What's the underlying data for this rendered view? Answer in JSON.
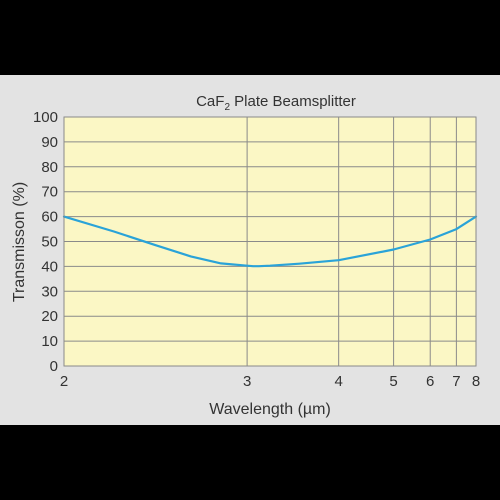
{
  "chart_data": {
    "type": "line",
    "title": "CaF",
    "title_subscript": "2",
    "title_suffix": " Plate Beamsplitter",
    "xlabel": "Wavelength (µm)",
    "ylabel": "Transmisson (%)",
    "xlim": [
      2,
      8
    ],
    "ylim": [
      0,
      100
    ],
    "x_scale": "reciprocal",
    "xticks": [
      2,
      3,
      4,
      5,
      6,
      7,
      8
    ],
    "xtick_labels": [
      "2",
      "3",
      "4",
      "5",
      "6",
      "7",
      "8"
    ],
    "yticks": [
      0,
      10,
      20,
      30,
      40,
      50,
      60,
      70,
      80,
      90,
      100
    ],
    "ytick_labels": [
      "0",
      "10",
      "20",
      "30",
      "40",
      "50",
      "60",
      "70",
      "80",
      "90",
      "100"
    ],
    "grid": true,
    "legend": "none",
    "series": [
      {
        "color": "#2aa3d8",
        "x": [
          2.0,
          2.2,
          2.4,
          2.6,
          2.8,
          3.0,
          3.05,
          3.1,
          3.2,
          3.5,
          4.0,
          5.0,
          6.0,
          7.0,
          8.0
        ],
        "y": [
          60,
          54,
          48.5,
          44,
          41.2,
          40.3,
          40.1,
          40.1,
          40.3,
          41.1,
          42.5,
          46.8,
          50.8,
          55.0,
          60.0
        ]
      }
    ]
  },
  "colors": {
    "plot_background": "#fbf7c5",
    "figure_background": "#e3e3e3",
    "page_background": "#000000",
    "grid": "#8a8a8a"
  }
}
